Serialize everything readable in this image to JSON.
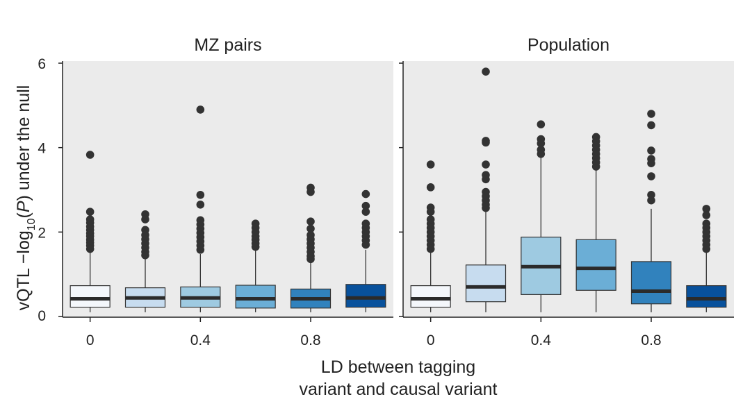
{
  "chart_data": {
    "type": "boxplot",
    "ylabel": {
      "prefix": "vQTL −log",
      "subscript": "10",
      "middle": "(",
      "italic": "P",
      "suffix": ") under the null"
    },
    "xlabel": [
      "LD between tagging",
      "variant and causal variant"
    ],
    "ylim": [
      0,
      6
    ],
    "yticks": [
      {
        "value": 0,
        "label": "0"
      },
      {
        "value": 2,
        "label": "2"
      },
      {
        "value": 4,
        "label": "4"
      },
      {
        "value": 6,
        "label": "6"
      }
    ],
    "xlim": [
      -0.1,
      1.1
    ],
    "xticks": [
      {
        "value": 0,
        "label": "0"
      },
      {
        "value": 0.4,
        "label": "0.4"
      },
      {
        "value": 0.8,
        "label": "0.8"
      }
    ],
    "colors": [
      "#f4f7fb",
      "#c7dcef",
      "#9ecae1",
      "#6baed6",
      "#3182bd",
      "#08519c"
    ],
    "panels": [
      {
        "title": "MZ pairs",
        "boxes": [
          {
            "ld": 0.0,
            "q1": 0.22,
            "median": 0.42,
            "q3": 0.73,
            "whisker_low": 0.1,
            "whisker_high": 1.52,
            "outliers": [
              3.83,
              2.48,
              2.3,
              2.22,
              2.13,
              2.05,
              1.97,
              1.9,
              1.82,
              1.75,
              1.68,
              1.6
            ]
          },
          {
            "ld": 0.2,
            "q1": 0.22,
            "median": 0.44,
            "q3": 0.68,
            "whisker_low": 0.1,
            "whisker_high": 1.4,
            "outliers": [
              2.42,
              2.3,
              2.05,
              1.93,
              1.83,
              1.73,
              1.63,
              1.53,
              1.45
            ]
          },
          {
            "ld": 0.4,
            "q1": 0.22,
            "median": 0.44,
            "q3": 0.7,
            "whisker_low": 0.1,
            "whisker_high": 1.48,
            "outliers": [
              4.9,
              2.88,
              2.65,
              2.28,
              2.18,
              2.08,
              1.98,
              1.88,
              1.78,
              1.68,
              1.58
            ]
          },
          {
            "ld": 0.6,
            "q1": 0.2,
            "median": 0.42,
            "q3": 0.74,
            "whisker_low": 0.1,
            "whisker_high": 1.58,
            "outliers": [
              2.2,
              2.1,
              2.0,
              1.9,
              1.82,
              1.73,
              1.65
            ]
          },
          {
            "ld": 0.8,
            "q1": 0.2,
            "median": 0.42,
            "q3": 0.65,
            "whisker_low": 0.1,
            "whisker_high": 1.3,
            "outliers": [
              3.05,
              2.95,
              2.25,
              2.08,
              1.93,
              1.83,
              1.73,
              1.63,
              1.53,
              1.43,
              1.36
            ]
          },
          {
            "ld": 1.0,
            "q1": 0.22,
            "median": 0.44,
            "q3": 0.76,
            "whisker_low": 0.1,
            "whisker_high": 1.58,
            "outliers": [
              2.9,
              2.62,
              2.48,
              2.2,
              2.1,
              2.0,
              1.9,
              1.8,
              1.7
            ]
          }
        ]
      },
      {
        "title": "Population",
        "boxes": [
          {
            "ld": 0.0,
            "q1": 0.22,
            "median": 0.42,
            "q3": 0.73,
            "whisker_low": 0.1,
            "whisker_high": 1.52,
            "outliers": [
              3.6,
              3.06,
              2.58,
              2.48,
              2.3,
              2.2,
              2.1,
              2.0,
              1.9,
              1.8,
              1.7,
              1.6
            ]
          },
          {
            "ld": 0.2,
            "q1": 0.35,
            "median": 0.7,
            "q3": 1.22,
            "whisker_low": 0.1,
            "whisker_high": 2.5,
            "outliers": [
              5.8,
              4.16,
              4.12,
              3.6,
              3.35,
              3.25,
              2.95,
              2.85,
              2.75,
              2.65,
              2.57
            ]
          },
          {
            "ld": 0.4,
            "q1": 0.52,
            "median": 1.18,
            "q3": 1.88,
            "whisker_low": 0.1,
            "whisker_high": 3.76,
            "outliers": [
              4.55,
              4.2,
              4.1,
              3.95,
              3.85
            ]
          },
          {
            "ld": 0.6,
            "q1": 0.62,
            "median": 1.14,
            "q3": 1.82,
            "whisker_low": 0.1,
            "whisker_high": 3.48,
            "outliers": [
              4.25,
              4.15,
              4.05,
              3.95,
              3.85,
              3.75,
              3.65,
              3.55
            ]
          },
          {
            "ld": 0.8,
            "q1": 0.3,
            "median": 0.6,
            "q3": 1.3,
            "whisker_low": 0.1,
            "whisker_high": 2.55,
            "outliers": [
              4.8,
              4.53,
              3.93,
              3.73,
              3.63,
              3.32,
              2.88,
              2.75
            ]
          },
          {
            "ld": 1.0,
            "q1": 0.22,
            "median": 0.42,
            "q3": 0.73,
            "whisker_low": 0.1,
            "whisker_high": 1.52,
            "outliers": [
              2.55,
              2.4,
              2.2,
              2.1,
              2.0,
              1.9,
              1.8,
              1.7,
              1.6
            ]
          }
        ]
      }
    ]
  }
}
